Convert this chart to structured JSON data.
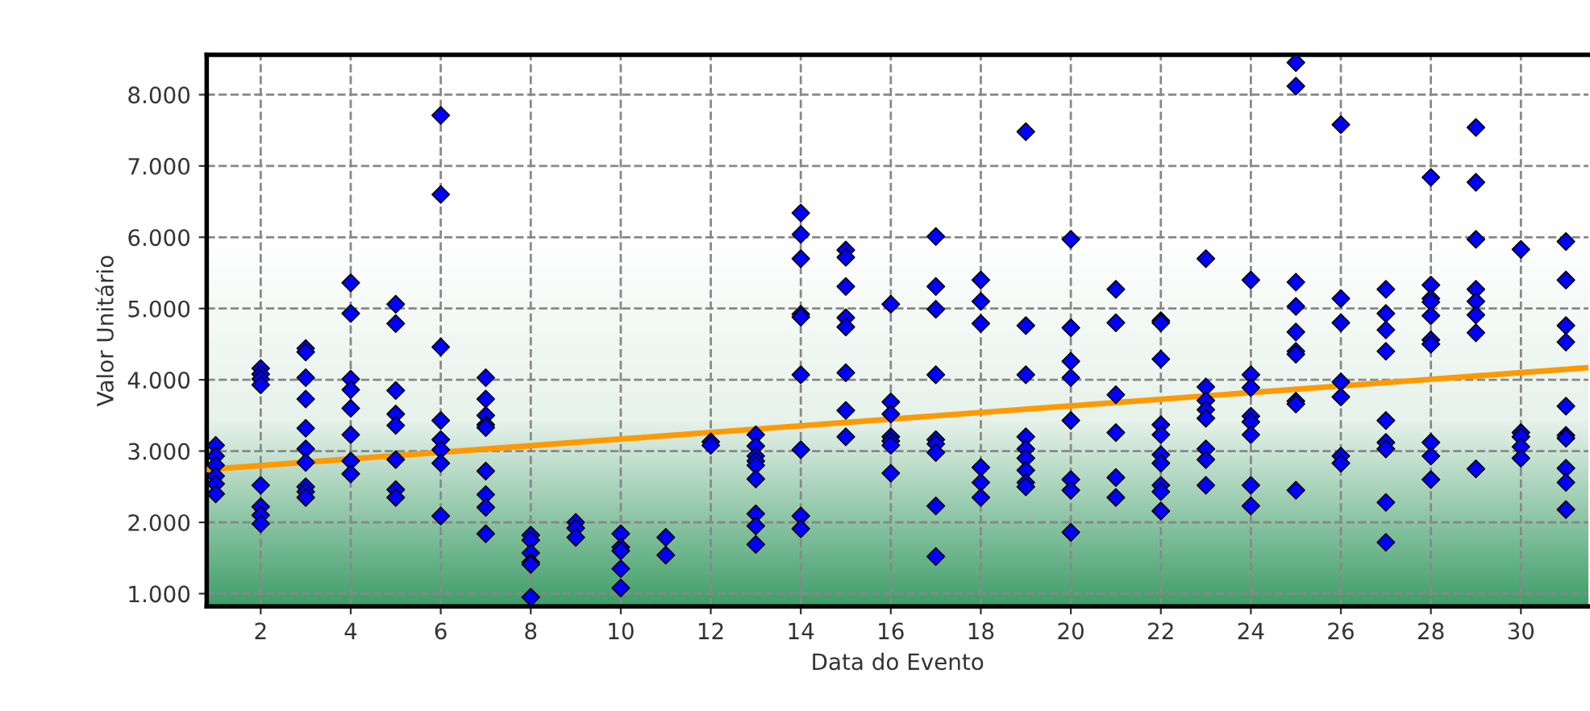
{
  "chart_data": {
    "type": "scatter",
    "xlabel": "Data do Evento",
    "ylabel": "Valor Unitário",
    "xlim": [
      0.8,
      31.5
    ],
    "xticks": [
      2,
      4,
      6,
      8,
      10,
      12,
      14,
      16,
      18,
      20,
      22,
      24,
      26,
      28,
      30
    ],
    "ylim": [
      820,
      8560
    ],
    "yticks": [
      {
        "value": 1000,
        "label": "1.000"
      },
      {
        "value": 2000,
        "label": "2.000"
      },
      {
        "value": 3000,
        "label": "3.000"
      },
      {
        "value": 4000,
        "label": "4.000"
      },
      {
        "value": 5000,
        "label": "5.000"
      },
      {
        "value": 6000,
        "label": "6.000"
      },
      {
        "value": 7000,
        "label": "7.000"
      },
      {
        "value": 8000,
        "label": "8.000"
      }
    ],
    "grid": true,
    "legend": false,
    "series": [
      {
        "color": "#0000ff",
        "marker": "diamond",
        "x": [
          1,
          1,
          1,
          1,
          1,
          1,
          2,
          2,
          2,
          2,
          2,
          2,
          2,
          2,
          3,
          3,
          3,
          3,
          3,
          3,
          3,
          3,
          3,
          3,
          4,
          4,
          4,
          4,
          4,
          4,
          4,
          4,
          5,
          5,
          5,
          5,
          5,
          5,
          5,
          5,
          6,
          6,
          6,
          6,
          6,
          6,
          6,
          6,
          7,
          7,
          7,
          7,
          7,
          7,
          7,
          7,
          7,
          8,
          8,
          8,
          8,
          8,
          8,
          9,
          9,
          9,
          10,
          10,
          10,
          10,
          10,
          11,
          11,
          12,
          12,
          13,
          13,
          13,
          13,
          13,
          13,
          13,
          13,
          13,
          14,
          14,
          14,
          14,
          14,
          14,
          14,
          14,
          14,
          15,
          15,
          15,
          15,
          15,
          15,
          15,
          15,
          16,
          16,
          16,
          16,
          16,
          16,
          16,
          17,
          17,
          17,
          17,
          17,
          17,
          17,
          17,
          17,
          18,
          18,
          18,
          18,
          18,
          18,
          19,
          19,
          19,
          19,
          19,
          19,
          19,
          19,
          19,
          20,
          20,
          20,
          20,
          20,
          20,
          20,
          20,
          21,
          21,
          21,
          21,
          21,
          21,
          22,
          22,
          22,
          22,
          22,
          22,
          22,
          22,
          22,
          22,
          23,
          23,
          23,
          23,
          23,
          23,
          23,
          23,
          24,
          24,
          24,
          24,
          24,
          24,
          24,
          24,
          25,
          25,
          25,
          25,
          25,
          25,
          25,
          25,
          25,
          25,
          26,
          26,
          26,
          26,
          26,
          26,
          26,
          27,
          27,
          27,
          27,
          27,
          27,
          27,
          27,
          27,
          28,
          28,
          28,
          28,
          28,
          28,
          28,
          28,
          28,
          28,
          29,
          29,
          29,
          29,
          29,
          29,
          29,
          29,
          30,
          30,
          30,
          30,
          30,
          31,
          31,
          31,
          31,
          31,
          31,
          31,
          31,
          31,
          31
        ],
        "values": [
          3080,
          2930,
          2800,
          2650,
          2540,
          2400,
          4160,
          4080,
          4010,
          3930,
          2520,
          2220,
          2100,
          1980,
          4440,
          4390,
          4030,
          3730,
          3320,
          3030,
          2840,
          2500,
          2430,
          2350,
          5360,
          4930,
          4010,
          3860,
          3600,
          3230,
          2860,
          2680,
          5060,
          4790,
          3850,
          3520,
          3360,
          2880,
          2460,
          2350,
          7710,
          6600,
          4460,
          3430,
          3160,
          3020,
          2830,
          2090,
          4030,
          3730,
          3500,
          3370,
          3330,
          2720,
          2390,
          2210,
          1840,
          1820,
          1750,
          1570,
          1440,
          1410,
          950,
          2000,
          1920,
          1790,
          1840,
          1650,
          1600,
          1350,
          1080,
          1790,
          1540,
          3130,
          3080,
          3230,
          3070,
          2930,
          2860,
          2800,
          2610,
          2120,
          1950,
          1690,
          6340,
          6040,
          5700,
          4920,
          4880,
          4070,
          3020,
          2090,
          1910,
          5820,
          5720,
          5310,
          4870,
          4740,
          4100,
          3570,
          3200,
          5060,
          3690,
          3520,
          3200,
          3140,
          3080,
          2690,
          6010,
          5310,
          4990,
          4070,
          3160,
          3100,
          2980,
          2230,
          1520,
          5400,
          5100,
          4790,
          2770,
          2560,
          2350,
          7480,
          4760,
          4070,
          3200,
          3030,
          2900,
          2730,
          2560,
          2500,
          5970,
          4730,
          4260,
          4030,
          3430,
          2600,
          2450,
          1860,
          5270,
          4800,
          3790,
          3260,
          2630,
          2350,
          4830,
          4800,
          4290,
          3370,
          3230,
          2950,
          2830,
          2520,
          2430,
          2160,
          5700,
          3900,
          3710,
          3580,
          3460,
          3030,
          2880,
          2520,
          5400,
          4070,
          3890,
          3490,
          3410,
          3230,
          2520,
          2230,
          8450,
          8120,
          5370,
          5030,
          4670,
          4400,
          4360,
          3700,
          3660,
          2450,
          7580,
          5140,
          4800,
          3970,
          3760,
          2930,
          2830,
          5270,
          4930,
          4700,
          4400,
          3430,
          3120,
          3030,
          2280,
          1720,
          6840,
          5330,
          5140,
          5090,
          4900,
          4560,
          4500,
          3120,
          2930,
          2600,
          7540,
          6770,
          5970,
          5270,
          5100,
          4910,
          4660,
          2750,
          5830,
          3260,
          3200,
          3060,
          2900,
          5940,
          5400,
          4760,
          4530,
          3630,
          3220,
          3180,
          2760,
          2560,
          2180
        ]
      },
      {
        "type": "line",
        "color": "#ff9900",
        "line_style": "solid",
        "marker": "none",
        "x": [
          0.8,
          31.5
        ],
        "values": [
          2740,
          4170
        ]
      }
    ]
  }
}
